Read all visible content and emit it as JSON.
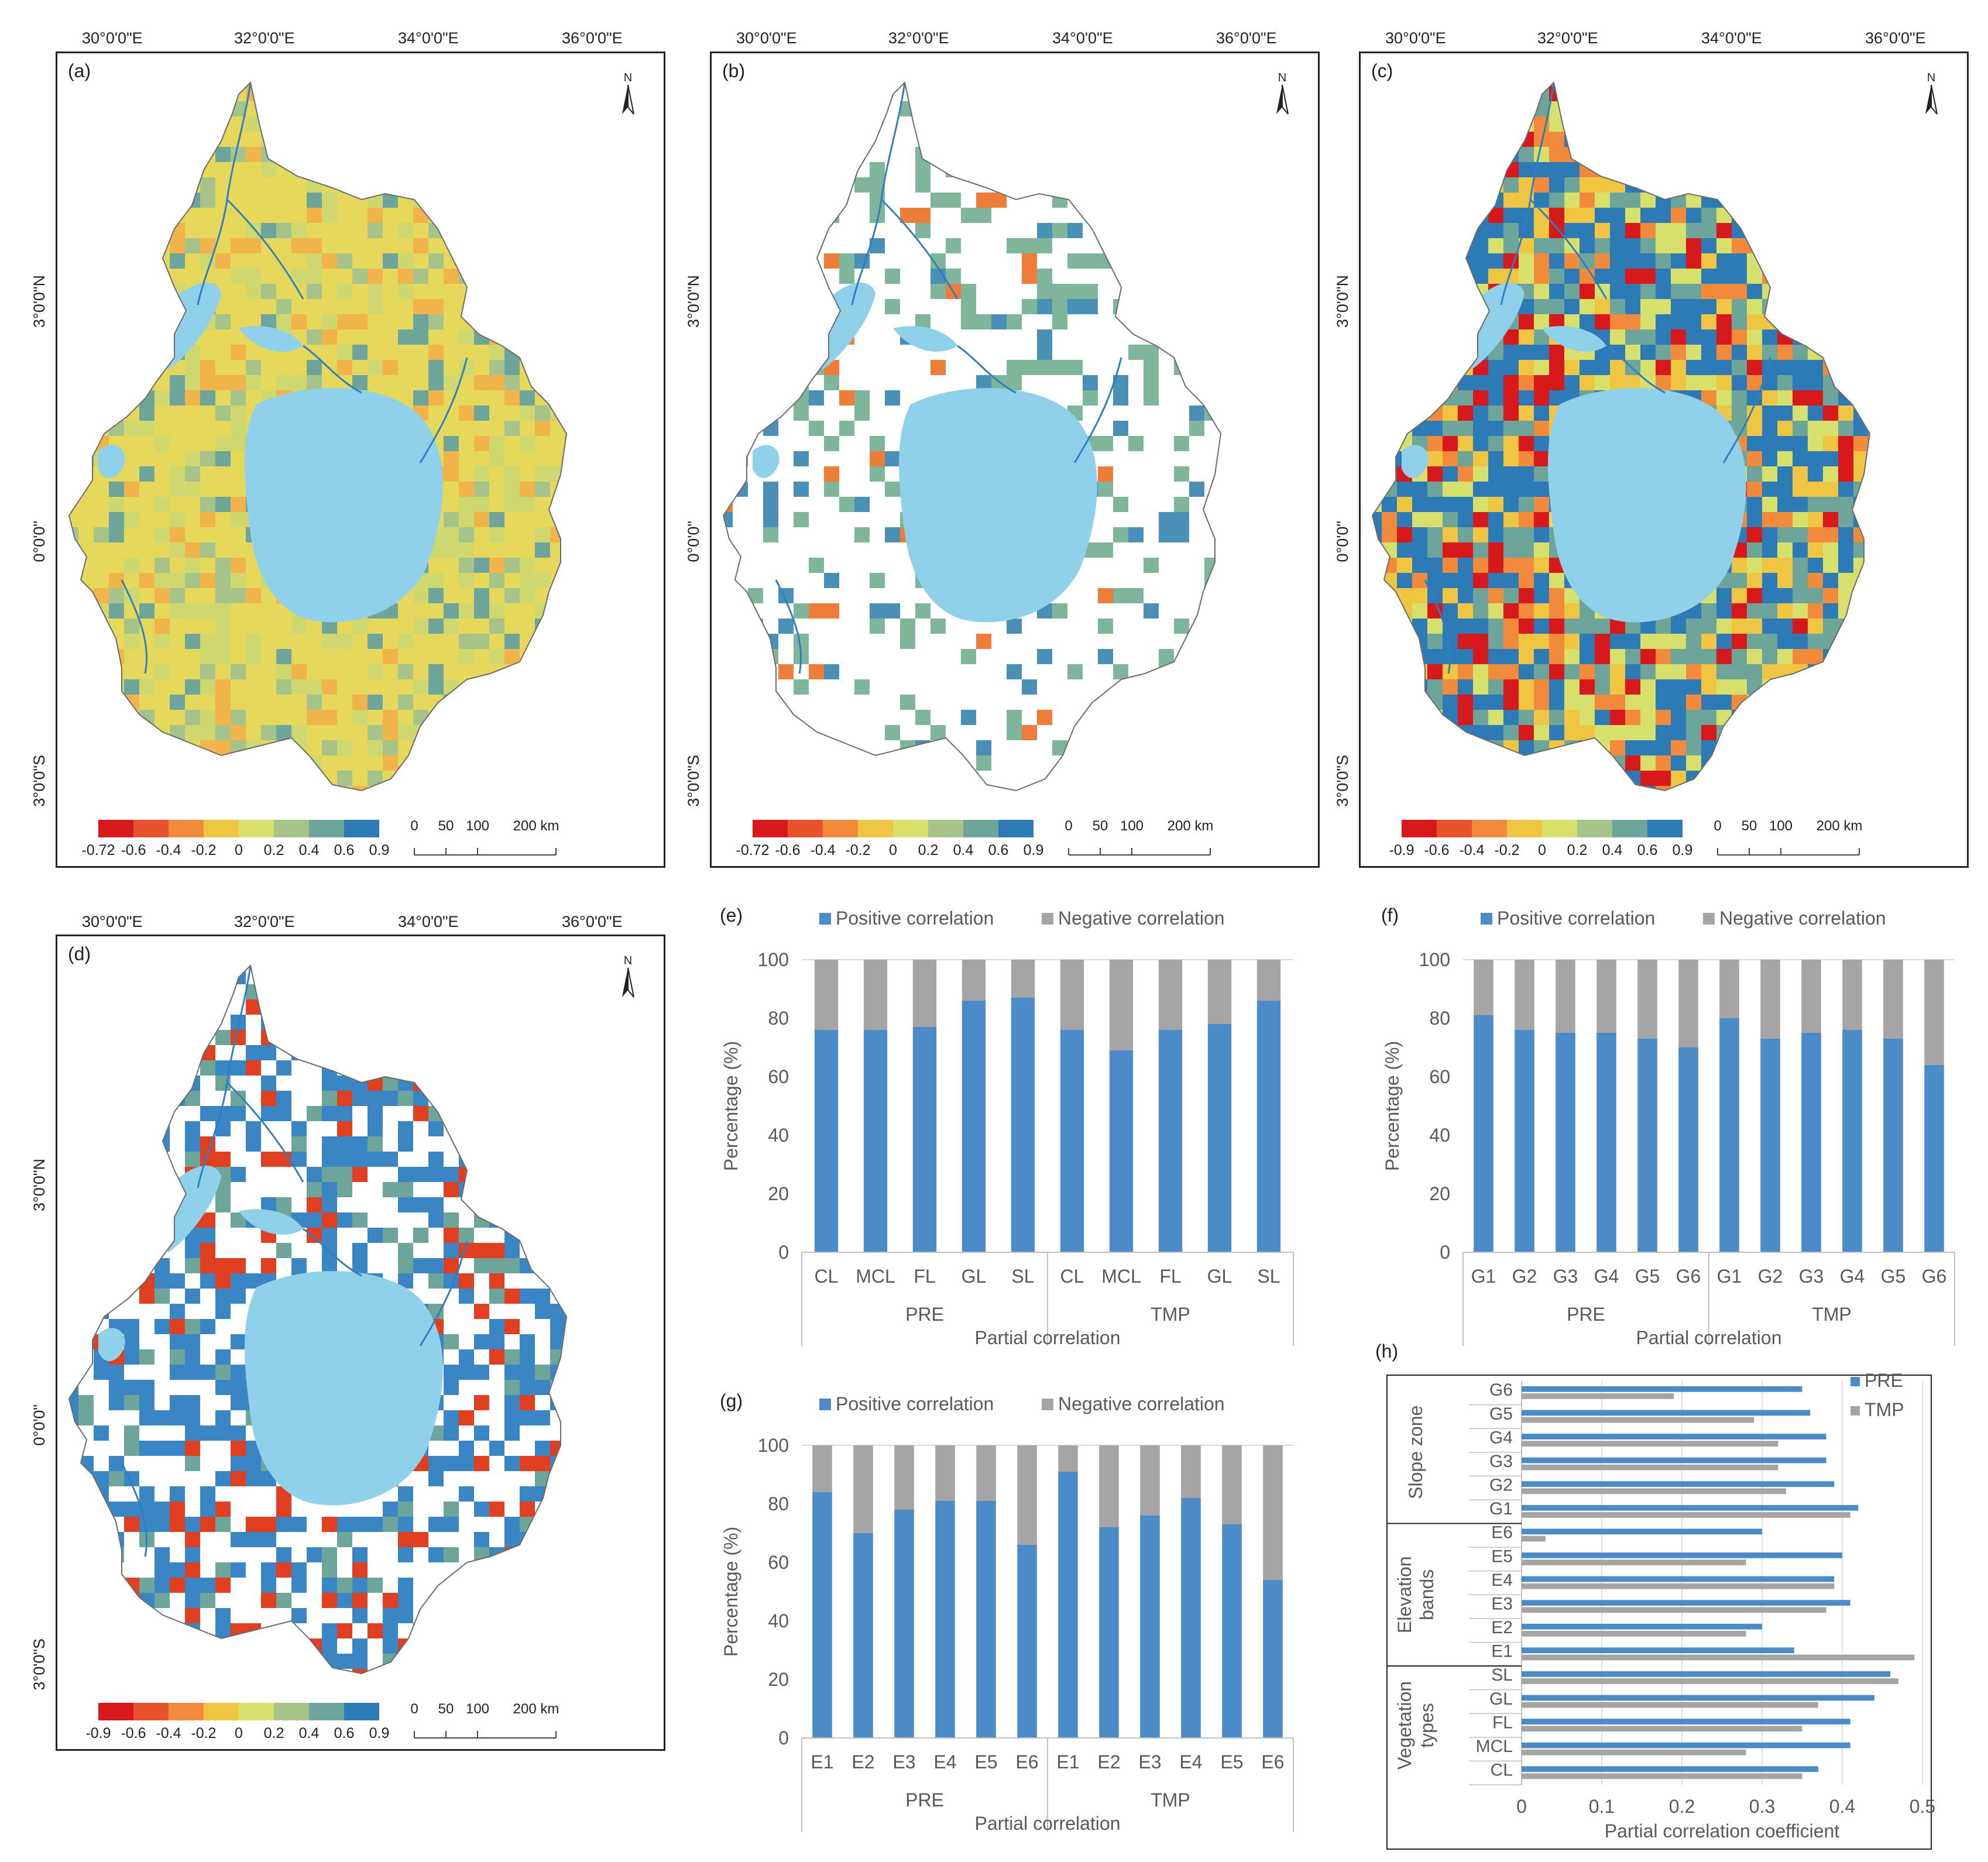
{
  "colors": {
    "positive": "#4a8bc8",
    "negative": "#a5a5a5",
    "lake": "#8fd1ea",
    "river": "#2d7fc1",
    "ramp": [
      "#d7191c",
      "#e8532b",
      "#f28a3c",
      "#f0c542",
      "#d6e06b",
      "#a6c48a",
      "#6da59a",
      "#2c7bb6"
    ]
  },
  "maps": [
    {
      "label": "(a)",
      "legend_ticks": [
        "-0.72",
        "-0.6",
        "-0.4",
        "-0.2",
        "0",
        "0.2",
        "0.4",
        "0.6",
        "0.9"
      ],
      "north": "N",
      "scale": [
        "0",
        "50",
        "100",
        "200 km"
      ],
      "style": "yellow"
    },
    {
      "label": "(b)",
      "legend_ticks": [
        "-0.72",
        "-0.6",
        "-0.4",
        "-0.2",
        "0",
        "0.2",
        "0.4",
        "0.6",
        "0.9"
      ],
      "north": "N",
      "scale": [
        "0",
        "50",
        "100",
        "200 km"
      ],
      "style": "sparse"
    },
    {
      "label": "(c)",
      "legend_ticks": [
        "-0.9",
        "-0.6",
        "-0.4",
        "-0.2",
        "0",
        "0.2",
        "0.4",
        "0.6",
        "0.9"
      ],
      "north": "N",
      "scale": [
        "0",
        "50",
        "100",
        "200 km"
      ],
      "style": "dense"
    },
    {
      "label": "(d)",
      "legend_ticks": [
        "-0.9",
        "-0.6",
        "-0.4",
        "-0.2",
        "0",
        "0.2",
        "0.4",
        "0.6",
        "0.9"
      ],
      "north": "N",
      "scale": [
        "0",
        "50",
        "100",
        "200 km"
      ],
      "style": "mixed"
    }
  ],
  "map_lon_labels": [
    "30°0'0\"E",
    "32°0'0\"E",
    "34°0'0\"E",
    "36°0'0\"E"
  ],
  "map_lat_labels": [
    "3°0'0\"N",
    "0°0'0\"",
    "3°0'0\"S"
  ],
  "chart_data": [
    {
      "id": "e",
      "label": "(e)",
      "type": "bar",
      "stacked": true,
      "legend": [
        "Positive correlation",
        "Negative correlation"
      ],
      "ylabel": "Percentage (%)",
      "xlabel": "Partial correlation",
      "ylim": [
        0,
        100
      ],
      "yticks": [
        "0",
        "20",
        "40",
        "60",
        "80",
        "100"
      ],
      "groups": [
        {
          "name": "PRE",
          "categories": [
            "CL",
            "MCL",
            "FL",
            "GL",
            "SL"
          ],
          "positive": [
            76,
            76,
            77,
            86,
            87
          ],
          "negative": [
            24,
            24,
            23,
            14,
            13
          ]
        },
        {
          "name": "TMP",
          "categories": [
            "CL",
            "MCL",
            "FL",
            "GL",
            "SL"
          ],
          "positive": [
            76,
            69,
            76,
            78,
            86
          ],
          "negative": [
            24,
            31,
            24,
            22,
            14
          ]
        }
      ]
    },
    {
      "id": "f",
      "label": "(f)",
      "type": "bar",
      "stacked": true,
      "legend": [
        "Positive correlation",
        "Negative correlation"
      ],
      "ylabel": "Percentage (%)",
      "xlabel": "Partial correlation",
      "ylim": [
        0,
        100
      ],
      "yticks": [
        "0",
        "20",
        "40",
        "60",
        "80",
        "100"
      ],
      "groups": [
        {
          "name": "PRE",
          "categories": [
            "G1",
            "G2",
            "G3",
            "G4",
            "G5",
            "G6"
          ],
          "positive": [
            81,
            76,
            75,
            75,
            73,
            70
          ],
          "negative": [
            19,
            24,
            25,
            25,
            27,
            30
          ]
        },
        {
          "name": "TMP",
          "categories": [
            "G1",
            "G2",
            "G3",
            "G4",
            "G5",
            "G6"
          ],
          "positive": [
            80,
            73,
            75,
            76,
            73,
            64
          ],
          "negative": [
            20,
            27,
            25,
            24,
            27,
            36
          ]
        }
      ]
    },
    {
      "id": "g",
      "label": "(g)",
      "type": "bar",
      "stacked": true,
      "legend": [
        "Positive correlation",
        "Negative correlation"
      ],
      "ylabel": "Percentage (%)",
      "xlabel": "Partial correlation",
      "ylim": [
        0,
        100
      ],
      "yticks": [
        "0",
        "20",
        "40",
        "60",
        "80",
        "100"
      ],
      "groups": [
        {
          "name": "PRE",
          "categories": [
            "E1",
            "E2",
            "E3",
            "E4",
            "E5",
            "E6"
          ],
          "positive": [
            84,
            70,
            78,
            81,
            81,
            66
          ],
          "negative": [
            16,
            30,
            22,
            19,
            19,
            34
          ]
        },
        {
          "name": "TMP",
          "categories": [
            "E1",
            "E2",
            "E3",
            "E4",
            "E5",
            "E6"
          ],
          "positive": [
            91,
            72,
            76,
            82,
            73,
            54
          ],
          "negative": [
            9,
            28,
            24,
            18,
            27,
            46
          ]
        }
      ]
    },
    {
      "id": "h",
      "label": "(h)",
      "type": "bar",
      "orientation": "horizontal",
      "xlabel": "Partial correlation coefficient",
      "xlim": [
        0,
        0.5
      ],
      "xticks": [
        "0",
        "0.1",
        "0.2",
        "0.3",
        "0.4",
        "0.5"
      ],
      "series_names": [
        "PRE",
        "TMP"
      ],
      "sections": [
        {
          "name": [
            "Slope zone"
          ],
          "categories": [
            "G6",
            "G5",
            "G4",
            "G3",
            "G2",
            "G1"
          ],
          "PRE": [
            0.35,
            0.36,
            0.38,
            0.38,
            0.39,
            0.42
          ],
          "TMP": [
            0.19,
            0.29,
            0.32,
            0.32,
            0.33,
            0.41
          ]
        },
        {
          "name": [
            "Elevation",
            "bands"
          ],
          "categories": [
            "E6",
            "E5",
            "E4",
            "E3",
            "E2",
            "E1"
          ],
          "PRE": [
            0.3,
            0.4,
            0.39,
            0.41,
            0.3,
            0.34
          ],
          "TMP": [
            0.03,
            0.28,
            0.39,
            0.38,
            0.28,
            0.49
          ]
        },
        {
          "name": [
            "Vegetation",
            "types"
          ],
          "categories": [
            "SL",
            "GL",
            "FL",
            "MCL",
            "CL"
          ],
          "PRE": [
            0.46,
            0.44,
            0.41,
            0.41,
            0.37
          ],
          "TMP": [
            0.47,
            0.37,
            0.35,
            0.28,
            0.35
          ]
        }
      ]
    }
  ]
}
